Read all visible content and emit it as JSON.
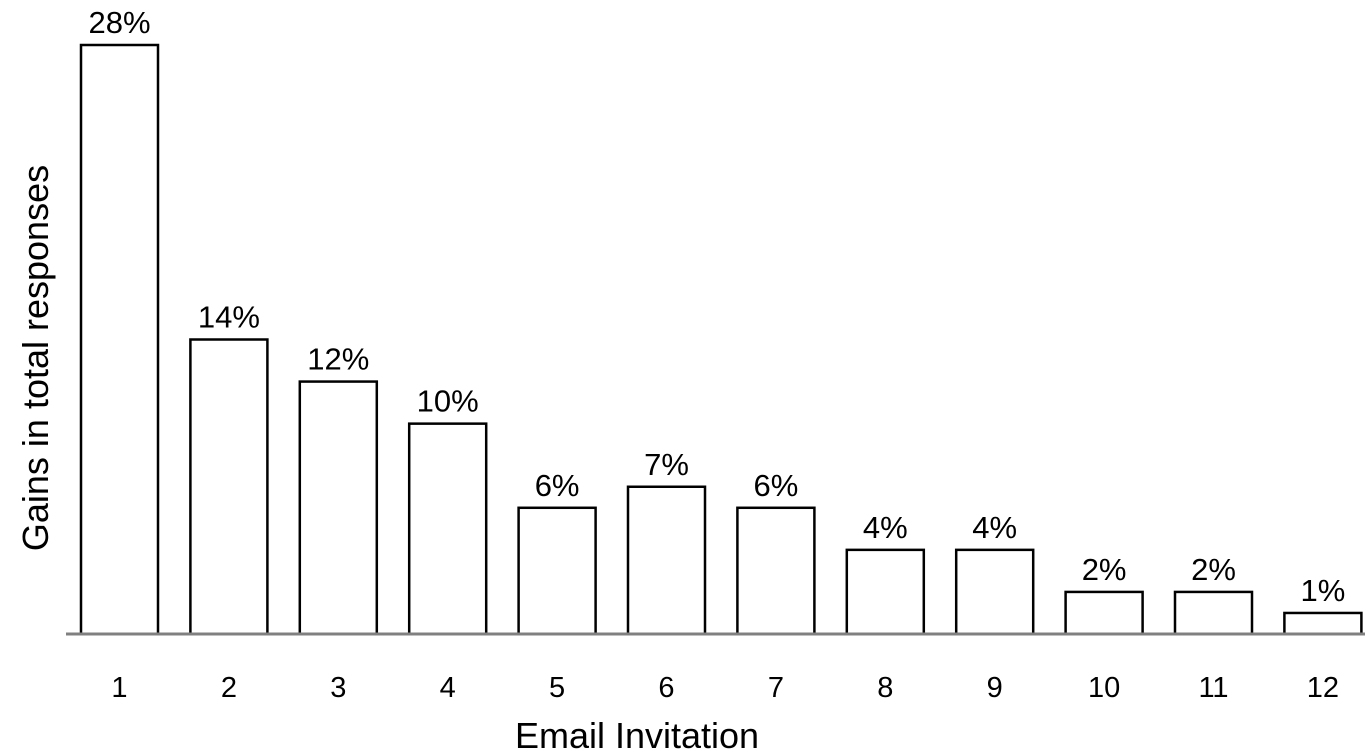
{
  "chart_data": {
    "type": "bar",
    "title": "",
    "xlabel": "Email Invitation",
    "ylabel": "Gains in total responses",
    "categories": [
      "1",
      "2",
      "3",
      "4",
      "5",
      "6",
      "7",
      "8",
      "9",
      "10",
      "11",
      "12"
    ],
    "values": [
      28,
      14,
      12,
      10,
      6,
      7,
      6,
      4,
      4,
      2,
      2,
      1
    ],
    "data_labels": [
      "28%",
      "14%",
      "12%",
      "10%",
      "6%",
      "7%",
      "6%",
      "4%",
      "4%",
      "2%",
      "2%",
      "1%"
    ],
    "ylim": [
      0,
      28
    ],
    "grid": false,
    "legend": "none",
    "colors": {
      "bar_fill": "#ffffff",
      "bar_stroke": "#000000",
      "axis": "#808080"
    }
  }
}
